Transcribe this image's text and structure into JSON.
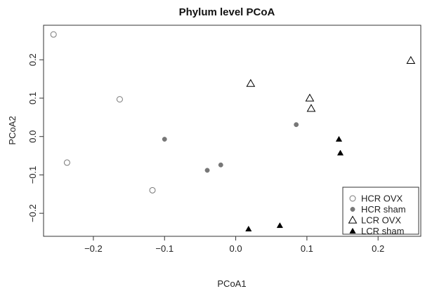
{
  "chart_data": {
    "type": "scatter",
    "title": "Phylum level PCoA",
    "xlabel": "PCoA1",
    "ylabel": "PCoA2",
    "xlim": [
      -0.27,
      0.26
    ],
    "ylim": [
      -0.26,
      0.29
    ],
    "x_ticks": [
      -0.2,
      -0.1,
      0.0,
      0.1,
      0.2
    ],
    "x_tick_labels": [
      "−0.2",
      "−0.1",
      "0.0",
      "0.1",
      "0.2"
    ],
    "y_ticks": [
      -0.2,
      -0.1,
      0.0,
      0.1,
      0.2
    ],
    "y_tick_labels": [
      "−0.2",
      "−0.1",
      "0.0",
      "0.1",
      "0.2"
    ],
    "grid": false,
    "legend_position": "bottom-right",
    "series": [
      {
        "name": "HCR OVX",
        "marker": "open-circle",
        "color": "#777777",
        "points": [
          [
            -0.256,
            0.266
          ],
          [
            -0.163,
            0.097
          ],
          [
            -0.237,
            -0.068
          ],
          [
            -0.117,
            -0.14
          ]
        ]
      },
      {
        "name": "HCR sham",
        "marker": "filled-circle",
        "color": "#777777",
        "points": [
          [
            -0.1,
            -0.007
          ],
          [
            -0.04,
            -0.088
          ],
          [
            -0.021,
            -0.074
          ],
          [
            0.085,
            0.031
          ]
        ]
      },
      {
        "name": "LCR OVX",
        "marker": "open-triangle",
        "color": "#000000",
        "points": [
          [
            0.021,
            0.138
          ],
          [
            0.104,
            0.1
          ],
          [
            0.106,
            0.073
          ],
          [
            0.246,
            0.198
          ]
        ]
      },
      {
        "name": "LCR sham",
        "marker": "filled-triangle",
        "color": "#000000",
        "points": [
          [
            0.145,
            -0.007
          ],
          [
            0.147,
            -0.043
          ],
          [
            0.018,
            -0.241
          ],
          [
            0.062,
            -0.232
          ]
        ]
      }
    ]
  }
}
